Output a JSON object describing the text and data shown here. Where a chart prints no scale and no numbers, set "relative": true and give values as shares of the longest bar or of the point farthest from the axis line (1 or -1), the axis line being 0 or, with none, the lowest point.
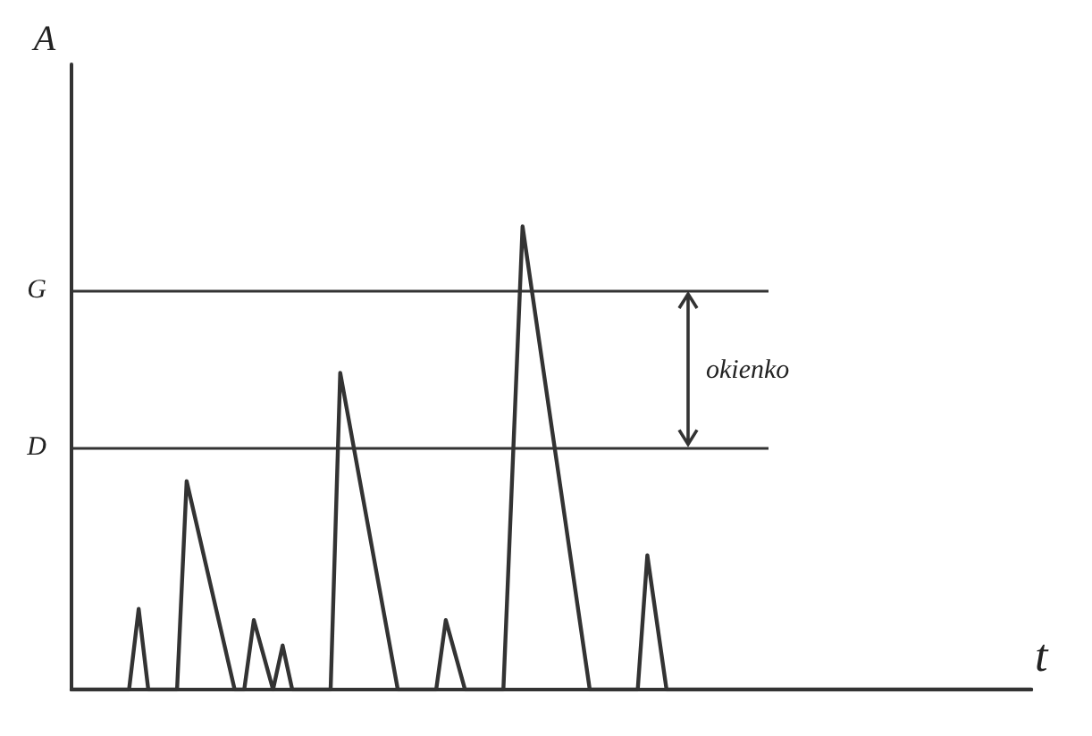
{
  "chart_data": {
    "type": "line",
    "relative": true,
    "xlabel": "t",
    "ylabel": "A",
    "color": "#333333",
    "grid": false,
    "line_style": "solid",
    "categories": [
      null,
      null,
      null,
      null,
      null,
      null,
      null,
      null,
      null,
      null,
      null,
      null,
      null,
      null,
      null,
      null,
      null,
      null,
      null,
      null,
      null,
      null,
      null,
      null,
      null,
      null,
      null,
      null,
      null,
      null,
      null,
      null,
      null,
      null,
      null,
      null,
      null,
      null,
      null,
      null,
      null,
      null,
      null,
      null,
      null,
      null,
      null,
      null,
      null,
      null,
      null,
      null,
      null,
      null,
      null,
      null,
      null,
      null,
      null,
      null,
      null,
      null,
      null,
      null,
      null,
      null,
      null,
      null,
      null,
      null,
      null,
      null,
      null,
      null,
      null,
      null,
      null,
      null,
      null,
      null,
      null,
      null,
      null,
      null,
      null,
      null,
      null,
      null,
      null,
      null,
      null,
      null,
      null,
      null,
      null,
      null,
      null,
      null,
      null,
      null,
      null
    ],
    "values": [
      0,
      0,
      0,
      0,
      0,
      0,
      0,
      0.174,
      0,
      0,
      0,
      0,
      0.45,
      0.36,
      0.27,
      0.18,
      0.09,
      0,
      0,
      0.15,
      0.075,
      0,
      0.095,
      0,
      0,
      0,
      0,
      0,
      0.684,
      0.57,
      0.456,
      0.342,
      0.228,
      0.114,
      0,
      0,
      0,
      0,
      0,
      0.15,
      0.075,
      0,
      0,
      0,
      0,
      0,
      0.5,
      1,
      0.857,
      0.714,
      0.571,
      0.429,
      0.286,
      0.143,
      0,
      0,
      0,
      0,
      0,
      0,
      0.29,
      0.145,
      0,
      0,
      0,
      0,
      0,
      0,
      0,
      0,
      0,
      0,
      0,
      0,
      0,
      0,
      0,
      0,
      0,
      0,
      0,
      0,
      0,
      0,
      0,
      0,
      0,
      0,
      0,
      0,
      0,
      0,
      0,
      0,
      0,
      0,
      0,
      0,
      0,
      0,
      0
    ],
    "ref_lines": [
      {
        "axis": "y",
        "value": 0.522,
        "label": "D"
      },
      {
        "axis": "y",
        "value": 0.862,
        "label": "G"
      }
    ],
    "annotations": [
      "okienko"
    ]
  }
}
